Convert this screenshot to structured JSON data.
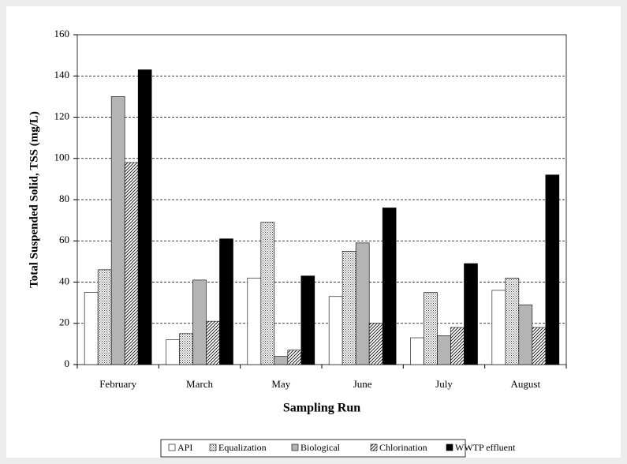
{
  "chart_data": {
    "type": "bar",
    "x_label": "Sampling Run",
    "y_label": "Total  Suspended Solid, TSS (mg/L)",
    "categories": [
      "February",
      "March",
      "May",
      "June",
      "July",
      "August"
    ],
    "series": [
      {
        "name": "API",
        "color": "#ffffff",
        "pattern": "none",
        "values": [
          35,
          12,
          42,
          33,
          13,
          36
        ]
      },
      {
        "name": "Equalization",
        "color": "#ffffff",
        "pattern": "dots",
        "values": [
          46,
          15,
          69,
          55,
          35,
          42
        ]
      },
      {
        "name": "Biological",
        "color": "#b4b4b4",
        "pattern": "none",
        "values": [
          130,
          41,
          4,
          59,
          14,
          29
        ]
      },
      {
        "name": "Chlorination",
        "color": "#ffffff",
        "pattern": "hatch",
        "values": [
          98,
          21,
          7,
          20,
          18,
          18
        ]
      },
      {
        "name": "WWTP effluent",
        "color": "#000000",
        "pattern": "none",
        "values": [
          143,
          61,
          43,
          76,
          49,
          92
        ]
      }
    ],
    "ylim": [
      0,
      160
    ],
    "yticks": [
      0,
      20,
      40,
      60,
      80,
      100,
      120,
      140,
      160
    ],
    "grid": true,
    "legend": "bottom"
  }
}
